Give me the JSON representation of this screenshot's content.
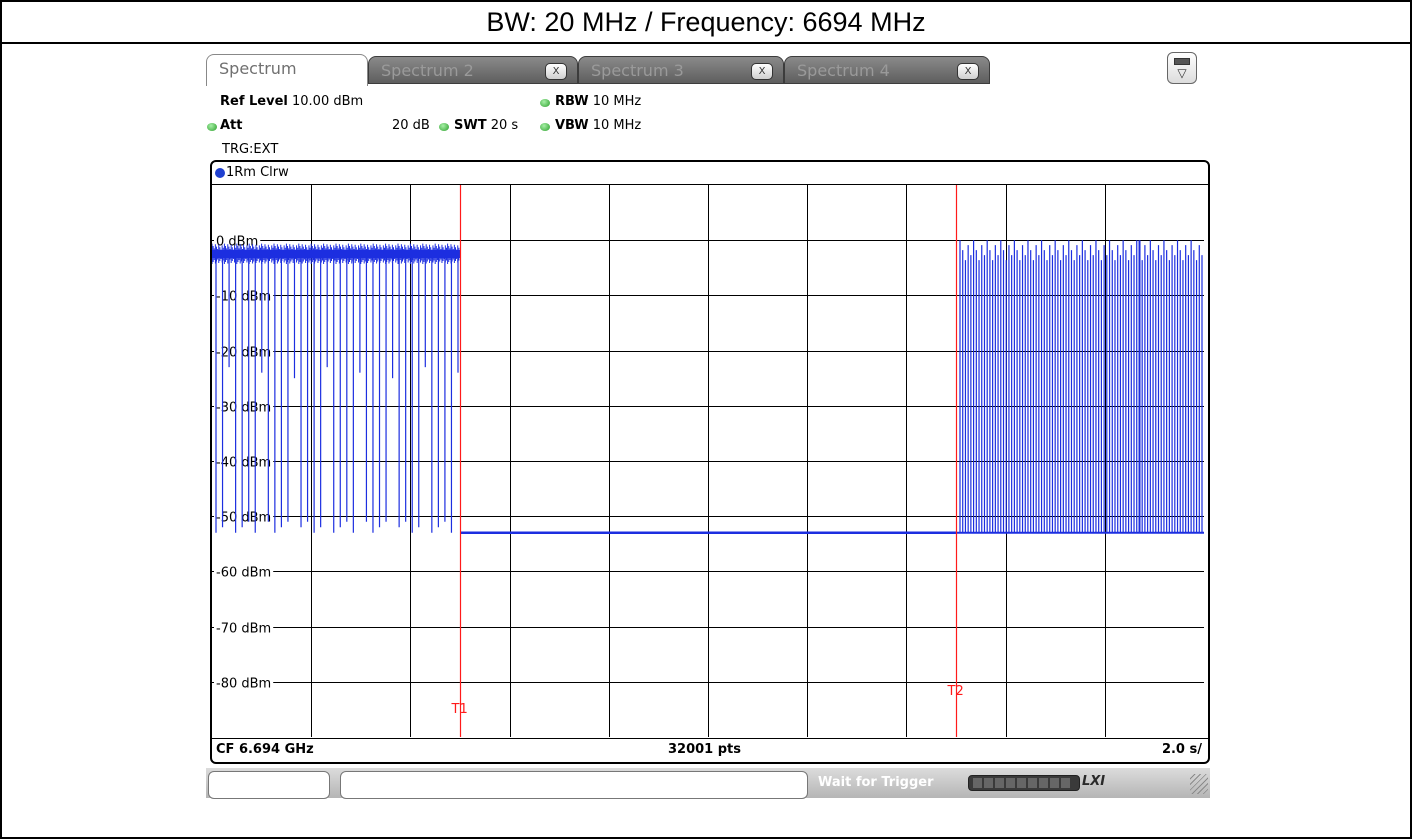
{
  "title": "BW: 20 MHz / Frequency: 6694 MHz",
  "tabs": [
    {
      "label": "Spectrum",
      "active": true,
      "closable": false
    },
    {
      "label": "Spectrum 2",
      "active": false,
      "closable": true
    },
    {
      "label": "Spectrum 3",
      "active": false,
      "closable": true
    },
    {
      "label": "Spectrum 4",
      "active": false,
      "closable": true
    }
  ],
  "tab_close_glyph": "X",
  "params": {
    "ref_level_label": "Ref Level",
    "ref_level_value": "10.00 dBm",
    "att_label": "Att",
    "att_value": "20 dB",
    "swt_label": "SWT",
    "swt_value": "20 s",
    "rbw_label": "RBW",
    "rbw_value": "10 MHz",
    "vbw_label": "VBW",
    "vbw_value": "10 MHz",
    "trigger": "TRG:EXT"
  },
  "trace_header": "1Rm Clrw",
  "footer": {
    "center_frequency": "CF 6.694 GHz",
    "points": "32001 pts",
    "sweep_scale": "2.0 s/"
  },
  "status": {
    "message": "Wait for Trigger",
    "logo": "LXI"
  },
  "icons": {
    "menu_toggle": "menu-toggle-icon",
    "trace_indicator": "trace-dot-icon"
  },
  "colors": {
    "trace": "#1c2ee0",
    "marker_line": "#ff1a1a",
    "grid": "#000000",
    "led": "#2a9d2a"
  },
  "chart_data": {
    "type": "line",
    "title": "",
    "xlabel": "",
    "ylabel": "",
    "x_unit": "s",
    "xlim": [
      0,
      20
    ],
    "ylim": [
      -90,
      10
    ],
    "y_ticks": [
      {
        "value": 0,
        "label": "0 dBm"
      },
      {
        "value": -10,
        "label": "-10 dBm"
      },
      {
        "value": -20,
        "label": "-20 dBm"
      },
      {
        "value": -30,
        "label": "-30 dBm"
      },
      {
        "value": -40,
        "label": "-40 dBm"
      },
      {
        "value": -50,
        "label": "-50 dBm"
      },
      {
        "value": -60,
        "label": "-60 dBm"
      },
      {
        "value": -70,
        "label": "-70 dBm"
      },
      {
        "value": -80,
        "label": "-80 dBm"
      }
    ],
    "grid": true,
    "markers": [
      {
        "label": "T1",
        "x": 5.0
      },
      {
        "label": "T2",
        "x": 15.0
      }
    ],
    "series": [
      {
        "segments": [
          {
            "x_start": 0.0,
            "x_end": 5.0,
            "level": -2.5,
            "burst_low": -53,
            "burst_count": 38
          },
          {
            "x_start": 5.0,
            "x_end": 15.0,
            "level": -53
          },
          {
            "x_start": 15.0,
            "x_end": 20.0,
            "level": -53,
            "burst_high": 0,
            "burst_count": 90
          }
        ]
      }
    ]
  }
}
